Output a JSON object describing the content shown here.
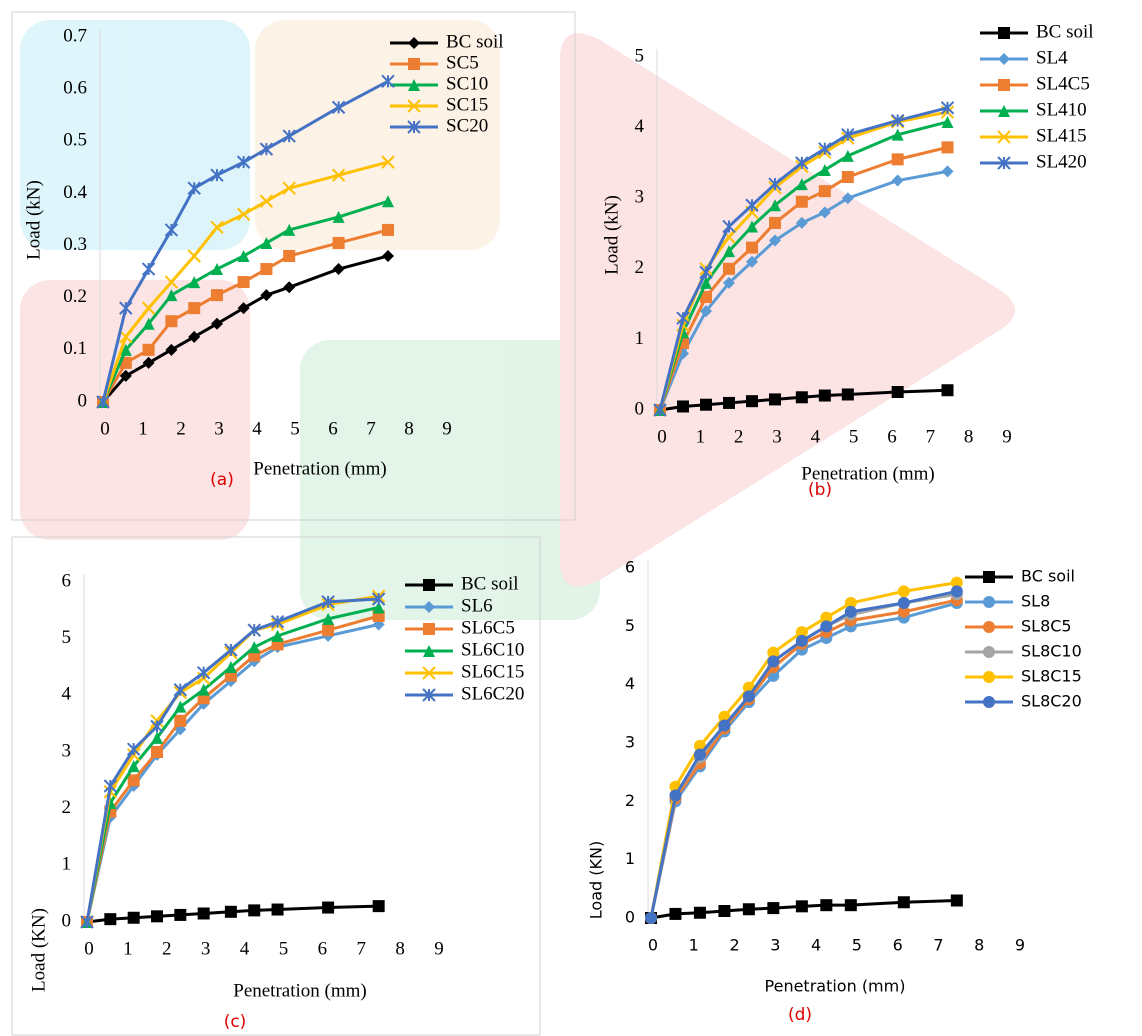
{
  "chart_data": [
    {
      "type": "line",
      "panel_label": "(a)",
      "x_label": "Penetration (mm)",
      "y_label": "Load (kN)",
      "x": [
        0,
        0.6,
        1.2,
        1.8,
        2.4,
        3.0,
        3.7,
        4.3,
        4.9,
        6.2,
        7.5
      ],
      "xlim": [
        0,
        9
      ],
      "xticks": [
        0,
        1,
        2,
        3,
        4,
        5,
        6,
        7,
        8,
        9
      ],
      "ylim": [
        0,
        0.7
      ],
      "yticks": [
        0,
        0.1,
        0.2,
        0.3,
        0.4,
        0.5,
        0.6,
        0.7
      ],
      "series": [
        {
          "name": "BC soil",
          "color": "#000000",
          "marker": "diamond",
          "values": [
            0,
            0.05,
            0.075,
            0.1,
            0.125,
            0.15,
            0.18,
            0.205,
            0.22,
            0.255,
            0.28
          ]
        },
        {
          "name": "SC5",
          "color": "#ed7d31",
          "marker": "square",
          "values": [
            0,
            0.075,
            0.1,
            0.155,
            0.18,
            0.205,
            0.23,
            0.255,
            0.28,
            0.305,
            0.33
          ]
        },
        {
          "name": "SC10",
          "color": "#00b050",
          "marker": "triangle",
          "values": [
            0,
            0.1,
            0.15,
            0.205,
            0.23,
            0.255,
            0.28,
            0.305,
            0.33,
            0.355,
            0.385
          ]
        },
        {
          "name": "SC15",
          "color": "#ffc000",
          "marker": "x",
          "values": [
            0,
            0.125,
            0.18,
            0.23,
            0.28,
            0.335,
            0.36,
            0.385,
            0.41,
            0.435,
            0.46
          ]
        },
        {
          "name": "SC20",
          "color": "#4472c4",
          "marker": "star",
          "values": [
            0,
            0.18,
            0.255,
            0.33,
            0.41,
            0.435,
            0.46,
            0.485,
            0.51,
            0.565,
            0.615
          ]
        }
      ]
    },
    {
      "type": "line",
      "panel_label": "(b)",
      "x_label": "Penetration (mm)",
      "y_label": "Load (kN)",
      "x": [
        0,
        0.6,
        1.2,
        1.8,
        2.4,
        3.0,
        3.7,
        4.3,
        4.9,
        6.2,
        7.5
      ],
      "xlim": [
        0,
        9
      ],
      "xticks": [
        0,
        1,
        2,
        3,
        4,
        5,
        6,
        7,
        8,
        9
      ],
      "ylim": [
        0,
        5
      ],
      "yticks": [
        0,
        1,
        2,
        3,
        4,
        5
      ],
      "series": [
        {
          "name": "BC soil",
          "color": "#000000",
          "marker": "square",
          "values": [
            0,
            0.05,
            0.075,
            0.1,
            0.125,
            0.15,
            0.18,
            0.205,
            0.22,
            0.255,
            0.28
          ]
        },
        {
          "name": "SL4",
          "color": "#5b9bd5",
          "marker": "diamond",
          "values": [
            0,
            0.8,
            1.4,
            1.8,
            2.1,
            2.4,
            2.65,
            2.8,
            3.0,
            3.25,
            3.38
          ]
        },
        {
          "name": "SL4C5",
          "color": "#ed7d31",
          "marker": "square",
          "values": [
            0,
            0.95,
            1.6,
            2.0,
            2.3,
            2.65,
            2.95,
            3.1,
            3.3,
            3.55,
            3.72
          ]
        },
        {
          "name": "SL410",
          "color": "#00b050",
          "marker": "triangle",
          "values": [
            0,
            1.1,
            1.8,
            2.25,
            2.6,
            2.9,
            3.2,
            3.4,
            3.6,
            3.9,
            4.08
          ]
        },
        {
          "name": "SL415",
          "color": "#ffc000",
          "marker": "x",
          "values": [
            0,
            1.2,
            2.0,
            2.45,
            2.8,
            3.15,
            3.45,
            3.65,
            3.85,
            4.08,
            4.22
          ]
        },
        {
          "name": "SL420",
          "color": "#4472c4",
          "marker": "star",
          "values": [
            0,
            1.3,
            1.95,
            2.6,
            2.9,
            3.2,
            3.5,
            3.7,
            3.9,
            4.1,
            4.28
          ]
        }
      ]
    },
    {
      "type": "line",
      "panel_label": "(c)",
      "x_label": "Penetration (mm)",
      "y_label": "Load (KN)",
      "x": [
        0,
        0.6,
        1.2,
        1.8,
        2.4,
        3.0,
        3.7,
        4.3,
        4.9,
        6.2,
        7.5
      ],
      "xlim": [
        0,
        9
      ],
      "xticks": [
        0,
        1,
        2,
        3,
        4,
        5,
        6,
        7,
        8,
        9
      ],
      "ylim": [
        0,
        6
      ],
      "yticks": [
        0,
        1,
        2,
        3,
        4,
        5,
        6
      ],
      "series": [
        {
          "name": "BC soil",
          "color": "#000000",
          "marker": "square",
          "values": [
            0,
            0.05,
            0.075,
            0.1,
            0.125,
            0.15,
            0.18,
            0.205,
            0.22,
            0.255,
            0.28
          ]
        },
        {
          "name": "SL6",
          "color": "#5b9bd5",
          "marker": "diamond",
          "values": [
            0,
            1.85,
            2.4,
            2.95,
            3.4,
            3.85,
            4.25,
            4.6,
            4.85,
            5.05,
            5.25
          ]
        },
        {
          "name": "SL6C5",
          "color": "#ed7d31",
          "marker": "square",
          "values": [
            0,
            1.95,
            2.5,
            3.0,
            3.55,
            3.95,
            4.35,
            4.7,
            4.9,
            5.15,
            5.4
          ]
        },
        {
          "name": "SL6C10",
          "color": "#00b050",
          "marker": "triangle",
          "values": [
            0,
            2.1,
            2.75,
            3.25,
            3.8,
            4.1,
            4.5,
            4.85,
            5.05,
            5.35,
            5.55
          ]
        },
        {
          "name": "SL6C15",
          "color": "#ffc000",
          "marker": "x",
          "values": [
            0,
            2.3,
            2.95,
            3.55,
            4.05,
            4.3,
            4.75,
            5.15,
            5.25,
            5.6,
            5.75
          ]
        },
        {
          "name": "SL6C20",
          "color": "#4472c4",
          "marker": "star",
          "values": [
            0,
            2.4,
            3.05,
            3.45,
            4.1,
            4.4,
            4.8,
            5.15,
            5.3,
            5.65,
            5.7
          ]
        }
      ]
    },
    {
      "type": "line",
      "panel_label": "(d)",
      "x_label": "Penetration (mm)",
      "y_label": "Load (KN)",
      "x": [
        0,
        0.6,
        1.2,
        1.8,
        2.4,
        3.0,
        3.7,
        4.3,
        4.9,
        6.2,
        7.5
      ],
      "xlim": [
        0,
        9
      ],
      "xticks": [
        0,
        1,
        2,
        3,
        4,
        5,
        6,
        7,
        8,
        9
      ],
      "ylim": [
        0,
        6
      ],
      "yticks": [
        0,
        1,
        2,
        3,
        4,
        5,
        6
      ],
      "series": [
        {
          "name": "BC soil",
          "color": "#000000",
          "marker": "square",
          "values": [
            0,
            0.07,
            0.09,
            0.12,
            0.15,
            0.17,
            0.2,
            0.22,
            0.22,
            0.27,
            0.3
          ]
        },
        {
          "name": "SL8",
          "color": "#5b9bd5",
          "marker": "circle",
          "values": [
            0,
            2.0,
            2.6,
            3.2,
            3.7,
            4.15,
            4.6,
            4.8,
            5.0,
            5.15,
            5.4
          ]
        },
        {
          "name": "SL8C5",
          "color": "#ed7d31",
          "marker": "circle",
          "values": [
            0,
            2.05,
            2.65,
            3.25,
            3.75,
            4.3,
            4.7,
            4.9,
            5.1,
            5.25,
            5.45
          ]
        },
        {
          "name": "SL8C10",
          "color": "#a5a5a5",
          "marker": "circle",
          "values": [
            0,
            2.1,
            2.75,
            3.3,
            3.8,
            4.4,
            4.75,
            5.0,
            5.2,
            5.4,
            5.55
          ]
        },
        {
          "name": "SL8C15",
          "color": "#ffc000",
          "marker": "circle",
          "values": [
            0,
            2.25,
            2.95,
            3.45,
            3.95,
            4.55,
            4.9,
            5.15,
            5.4,
            5.6,
            5.75
          ]
        },
        {
          "name": "SL8C20",
          "color": "#4472c4",
          "marker": "circle",
          "values": [
            0,
            2.1,
            2.8,
            3.3,
            3.8,
            4.4,
            4.75,
            5.0,
            5.25,
            5.4,
            5.6
          ]
        }
      ]
    }
  ]
}
